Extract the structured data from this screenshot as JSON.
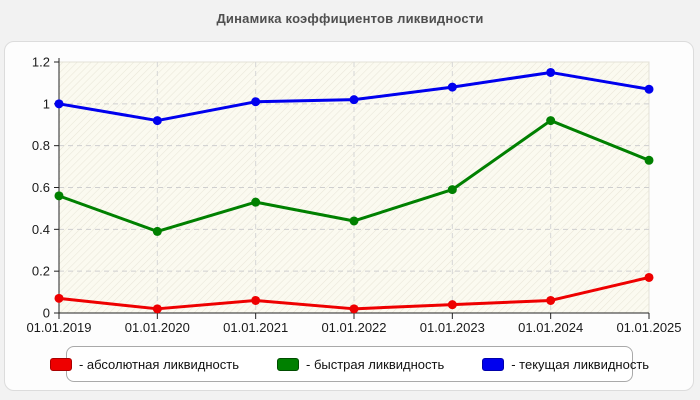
{
  "title": "Динамика коэффициентов ликвидности",
  "legend": {
    "position": "bottom",
    "items": [
      {
        "label": "- абсолютная ликвидность",
        "color": "#ee0000",
        "border": "#aa0000"
      },
      {
        "label": "- быстрая ликвидность",
        "color": "#008000",
        "border": "#004d00"
      },
      {
        "label": "- текущая ликвидность",
        "color": "#0000ee",
        "border": "#0000aa"
      }
    ]
  },
  "chart_data": {
    "type": "line",
    "title": "Динамика коэффициентов ликвидности",
    "categories": [
      "01.01.2019",
      "01.01.2020",
      "01.01.2021",
      "01.01.2022",
      "01.01.2023",
      "01.01.2024",
      "01.01.2025"
    ],
    "series": [
      {
        "name": "абсолютная ликвидность",
        "color": "#ee0000",
        "values": [
          0.07,
          0.02,
          0.06,
          0.02,
          0.04,
          0.06,
          0.17
        ]
      },
      {
        "name": "быстрая ликвидность",
        "color": "#008000",
        "values": [
          0.56,
          0.39,
          0.53,
          0.44,
          0.59,
          0.92,
          0.73
        ]
      },
      {
        "name": "текущая ликвидность",
        "color": "#0000ee",
        "values": [
          1.0,
          0.92,
          1.01,
          1.02,
          1.08,
          1.15,
          1.07
        ]
      }
    ],
    "xlabel": "",
    "ylabel": "",
    "ylim": [
      0,
      1.2
    ],
    "yticks": [
      0,
      0.2,
      0.4,
      0.6,
      0.8,
      1,
      1.2
    ],
    "ytick_labels": [
      "0",
      "0.2",
      "0.4",
      "0.6",
      "0.8",
      "1",
      "1.2"
    ],
    "grid": true,
    "grid_style": "dashed",
    "legend_position": "bottom",
    "colors": {
      "page_background": "#f2f2f2",
      "panel_background": "#fdfdfd",
      "plot_background": "#fbfaf0",
      "gridline": "#cfcfcf",
      "axis": "#222222",
      "title_text": "#4f4f4f"
    }
  }
}
